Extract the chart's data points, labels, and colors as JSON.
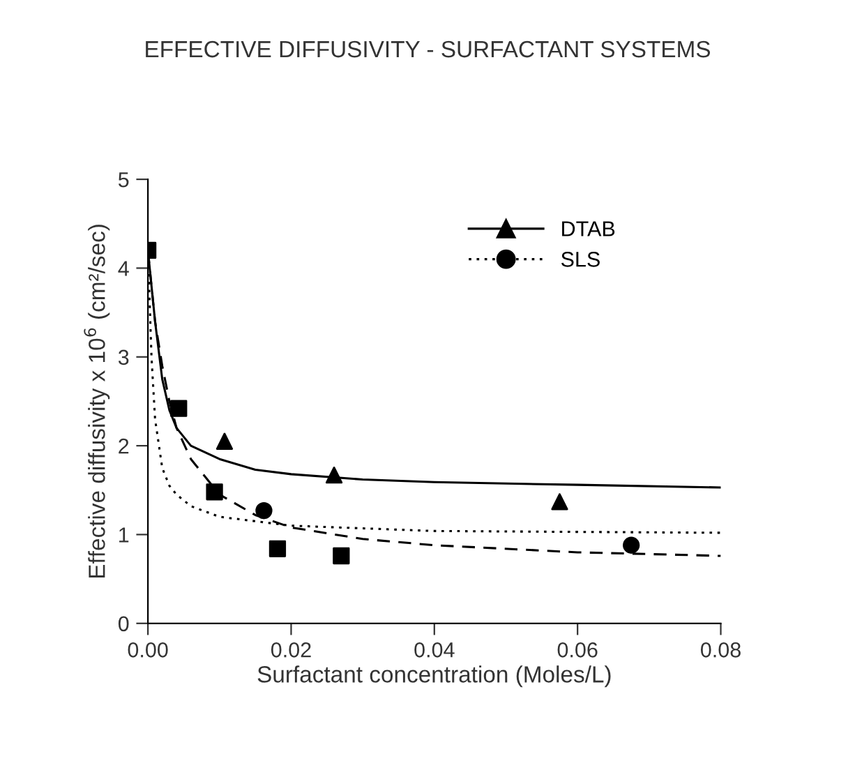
{
  "chart_data": {
    "type": "scatter",
    "title": "EFFECTIVE DIFFUSIVITY - SURFACTANT SYSTEMS",
    "xlabel": "Surfactant concentration (Moles/L)",
    "ylabel": "Effective diffusivity x 10$^{6}$ (cm²/sec)",
    "xlim": [
      0,
      0.08
    ],
    "xticks": [
      {
        "value": 0,
        "label": "0.00"
      },
      {
        "value": 0.02,
        "label": "0.02"
      },
      {
        "value": 0.04,
        "label": "0.04"
      },
      {
        "value": 0.06,
        "label": "0.06"
      },
      {
        "value": 0.08,
        "label": "0.08"
      }
    ],
    "ylim": [
      0,
      5
    ],
    "yticks": [
      0,
      1,
      2,
      3,
      4,
      5
    ],
    "grid": false,
    "legend": "top right",
    "series": [
      {
        "name": "DTAB",
        "marker": "triangle",
        "color": "#000000",
        "x": [
          0.0107,
          0.026,
          0.0575
        ],
        "values": [
          2.05,
          1.67,
          1.37
        ]
      },
      {
        "type": "line",
        "line_style": "solid",
        "marker": "none",
        "color": "#000000",
        "x": [
          0,
          0.001,
          0.002,
          0.003,
          0.004,
          0.006,
          0.01,
          0.015,
          0.02,
          0.03,
          0.04,
          0.06,
          0.08
        ],
        "values": [
          4.2,
          3.4,
          2.75,
          2.4,
          2.2,
          2.0,
          1.85,
          1.73,
          1.68,
          1.62,
          1.59,
          1.56,
          1.53
        ]
      },
      {
        "name": "SLS",
        "marker": "circle",
        "color": "#000000",
        "x": [
          0.0162,
          0.0675
        ],
        "values": [
          1.27,
          0.88
        ]
      },
      {
        "type": "line",
        "line_style": "dotted",
        "marker": "none",
        "color": "#000000",
        "x": [
          0,
          0.0005,
          0.001,
          0.002,
          0.003,
          0.004,
          0.006,
          0.01,
          0.02,
          0.04,
          0.08
        ],
        "values": [
          4.2,
          3.0,
          2.3,
          1.75,
          1.55,
          1.45,
          1.32,
          1.2,
          1.1,
          1.04,
          1.02
        ]
      },
      {
        "marker": "square",
        "color": "#000000",
        "x": [
          0,
          0.0043,
          0.0093,
          0.0181,
          0.027
        ],
        "values": [
          4.2,
          2.42,
          1.48,
          0.84,
          0.76
        ]
      },
      {
        "type": "line",
        "line_style": "dashed",
        "marker": "none",
        "color": "#000000",
        "x": [
          0,
          0.001,
          0.002,
          0.003,
          0.004,
          0.006,
          0.01,
          0.015,
          0.02,
          0.03,
          0.04,
          0.06,
          0.08
        ],
        "values": [
          4.2,
          3.4,
          2.9,
          2.5,
          2.2,
          1.85,
          1.45,
          1.22,
          1.08,
          0.95,
          0.88,
          0.8,
          0.76
        ]
      }
    ]
  }
}
